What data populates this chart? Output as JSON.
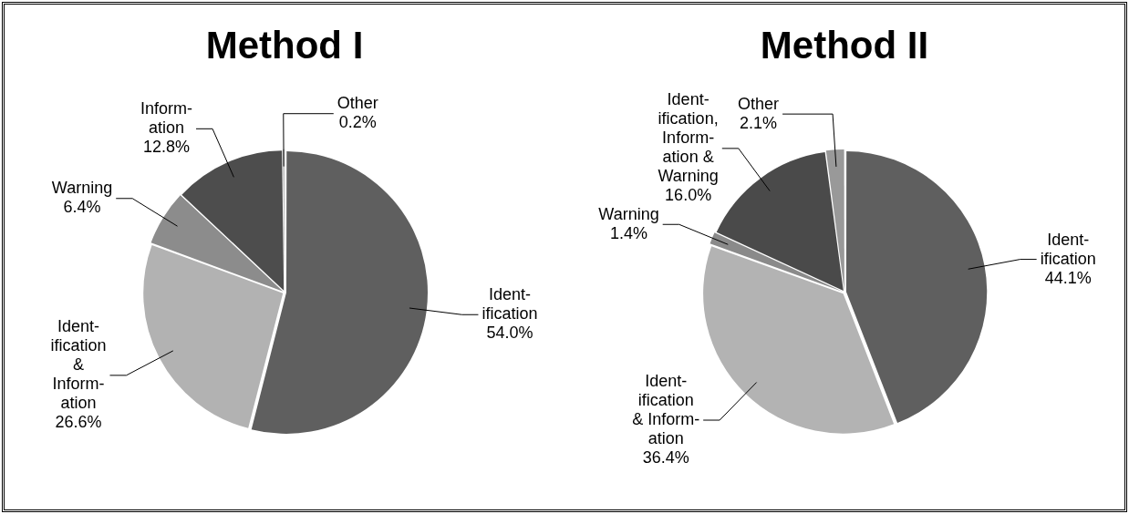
{
  "chart_data": [
    {
      "type": "pie",
      "title": "Method I",
      "categories": [
        "Ident-\nification",
        "Ident-\nification\n&\nInform-\nation",
        "Warning",
        "Inform-\nation",
        "Other"
      ],
      "values": [
        54.0,
        26.6,
        6.4,
        12.8,
        0.2
      ],
      "value_labels": [
        "54.0%",
        "26.6%",
        "6.4%",
        "12.8%",
        "0.2%"
      ],
      "colors": [
        "#5f5f5f",
        "#b2b2b2",
        "#8c8c8c",
        "#4d4d4d",
        "#a0a0a0"
      ]
    },
    {
      "type": "pie",
      "title": "Method II",
      "categories": [
        "Ident-\nification",
        "Ident-\nification\n& Inform-\nation",
        "Warning",
        "Ident-\nification,\nInform-\nation &\nWarning",
        "Other"
      ],
      "values": [
        44.1,
        36.4,
        1.4,
        16.0,
        2.1
      ],
      "value_labels": [
        "44.1%",
        "36.4%",
        "1.4%",
        "16.0%",
        "2.1%"
      ],
      "colors": [
        "#5f5f5f",
        "#b3b3b3",
        "#8a8a8a",
        "#4a4a4a",
        "#999999"
      ]
    }
  ]
}
